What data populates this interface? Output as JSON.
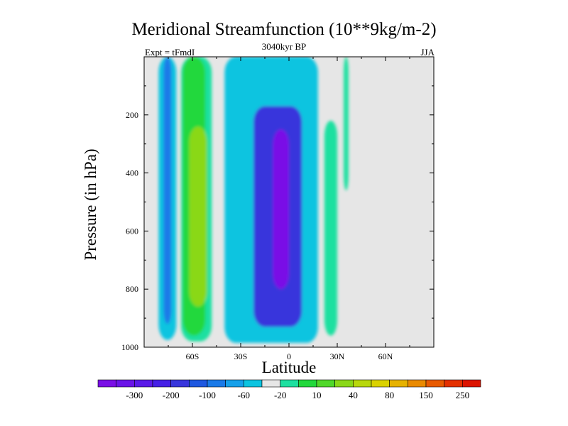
{
  "chart_data": {
    "type": "heatmap",
    "title": "Meridional Streamfunction (10**9kg/m-2)",
    "subtitle": "3040kyr BP",
    "left_label": "Expt = tFmdI",
    "right_label": "JJA",
    "xlabel": "Latitude",
    "ylabel": "Pressure (in hPa)",
    "xlim": [
      -90,
      90
    ],
    "ylim": [
      0,
      1000
    ],
    "y_reversed": true,
    "x_ticks": [
      {
        "value": -60,
        "label": "60S"
      },
      {
        "value": -30,
        "label": "30S"
      },
      {
        "value": 0,
        "label": "0"
      },
      {
        "value": 30,
        "label": "30N"
      },
      {
        "value": 60,
        "label": "60N"
      }
    ],
    "y_ticks": [
      {
        "value": 200,
        "label": "200"
      },
      {
        "value": 400,
        "label": "400"
      },
      {
        "value": 600,
        "label": "600"
      },
      {
        "value": 800,
        "label": "800"
      },
      {
        "value": 1000,
        "label": "1000"
      }
    ],
    "background_color": "#e6e6e6",
    "colorbar": {
      "colors": [
        "#7a0fe6",
        "#6a14e8",
        "#5a1ae8",
        "#4620e6",
        "#3836dc",
        "#1e58e0",
        "#1a7ae8",
        "#16a0ea",
        "#0cc4e0",
        "#e6e6e6",
        "#1ee0a0",
        "#22d83c",
        "#50d82a",
        "#8ad818",
        "#b8d80c",
        "#dad200",
        "#e6b200",
        "#ea8a00",
        "#e85a00",
        "#e43000",
        "#dc1400"
      ],
      "labels": [
        "-300",
        "-200",
        "-100",
        "-60",
        "-20",
        "10",
        "40",
        "80",
        "150",
        "250"
      ],
      "label_after_box": [
        1,
        3,
        5,
        7,
        9,
        11,
        13,
        15,
        17,
        19
      ]
    },
    "regions": [
      {
        "name": "sh-polar-cell",
        "value": -20,
        "color": "#0cc4e0",
        "lat": [
          -81,
          -70
        ],
        "p": [
          0,
          975
        ]
      },
      {
        "name": "sh-polar-cell-core",
        "value": -60,
        "color": "#1a7ae8",
        "lat": [
          -78,
          -73
        ],
        "p": [
          0,
          920
        ]
      },
      {
        "name": "sh-ferrel-cell",
        "value": 10,
        "color": "#1ee0a0",
        "lat": [
          -67,
          -48
        ],
        "p": [
          0,
          980
        ]
      },
      {
        "name": "sh-ferrel-cell-mid",
        "value": 40,
        "color": "#22d83c",
        "lat": [
          -66,
          -52
        ],
        "p": [
          0,
          960
        ]
      },
      {
        "name": "sh-ferrel-cell-core",
        "value": 80,
        "color": "#8ad818",
        "lat": [
          -62,
          -51
        ],
        "p": [
          240,
          860
        ]
      },
      {
        "name": "hadley-cell-outer",
        "value": -20,
        "color": "#0cc4e0",
        "lat": [
          -40,
          18
        ],
        "p": [
          0,
          985
        ]
      },
      {
        "name": "hadley-cell-mid",
        "value": -100,
        "color": "#3836dc",
        "lat": [
          -22,
          8
        ],
        "p": [
          170,
          930
        ]
      },
      {
        "name": "hadley-cell-core",
        "value": -300,
        "color": "#7a0fe6",
        "lat": [
          -10,
          0
        ],
        "p": [
          250,
          800
        ]
      },
      {
        "name": "nh-hadley-cell",
        "value": 10,
        "color": "#1ee0a0",
        "lat": [
          22,
          30
        ],
        "p": [
          220,
          960
        ]
      },
      {
        "name": "nh-ferrel-cell",
        "value": 10,
        "color": "#1ee0a0",
        "lat": [
          34,
          37
        ],
        "p": [
          0,
          460
        ]
      }
    ]
  }
}
